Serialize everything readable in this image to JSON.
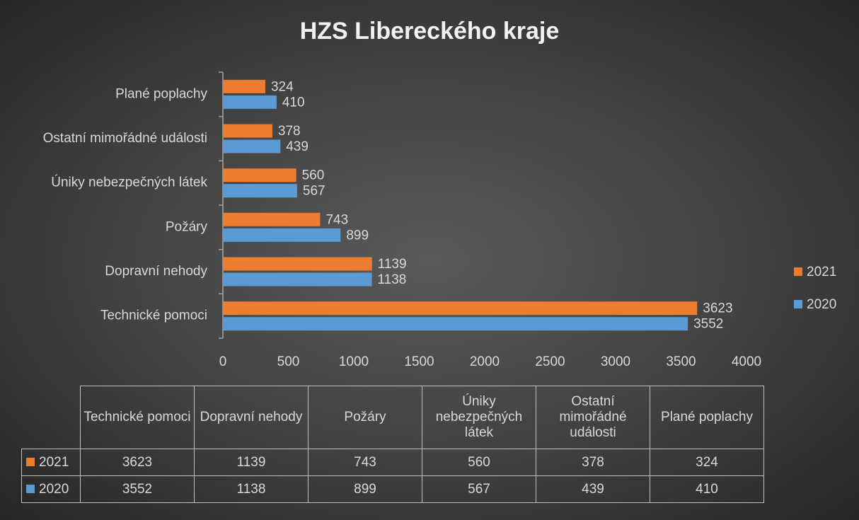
{
  "chart_data": {
    "type": "hbar",
    "title": "HZS Libereckého kraje",
    "categories": [
      "Technické pomoci",
      "Dopravní nehody",
      "Požáry",
      "Úniky nebezpečných látek",
      "Ostatní mimořádné události",
      "Plané poplachy"
    ],
    "series": [
      {
        "name": "2021",
        "color": "#ed7d31",
        "values": [
          3623,
          1139,
          743,
          560,
          378,
          324
        ]
      },
      {
        "name": "2020",
        "color": "#5b9bd5",
        "values": [
          3552,
          1138,
          899,
          567,
          439,
          410
        ]
      }
    ],
    "xlim": [
      0,
      4000
    ],
    "xticks": [
      0,
      500,
      1000,
      1500,
      2000,
      2500,
      3000,
      3500,
      4000
    ],
    "grid": false,
    "legend": "right"
  }
}
